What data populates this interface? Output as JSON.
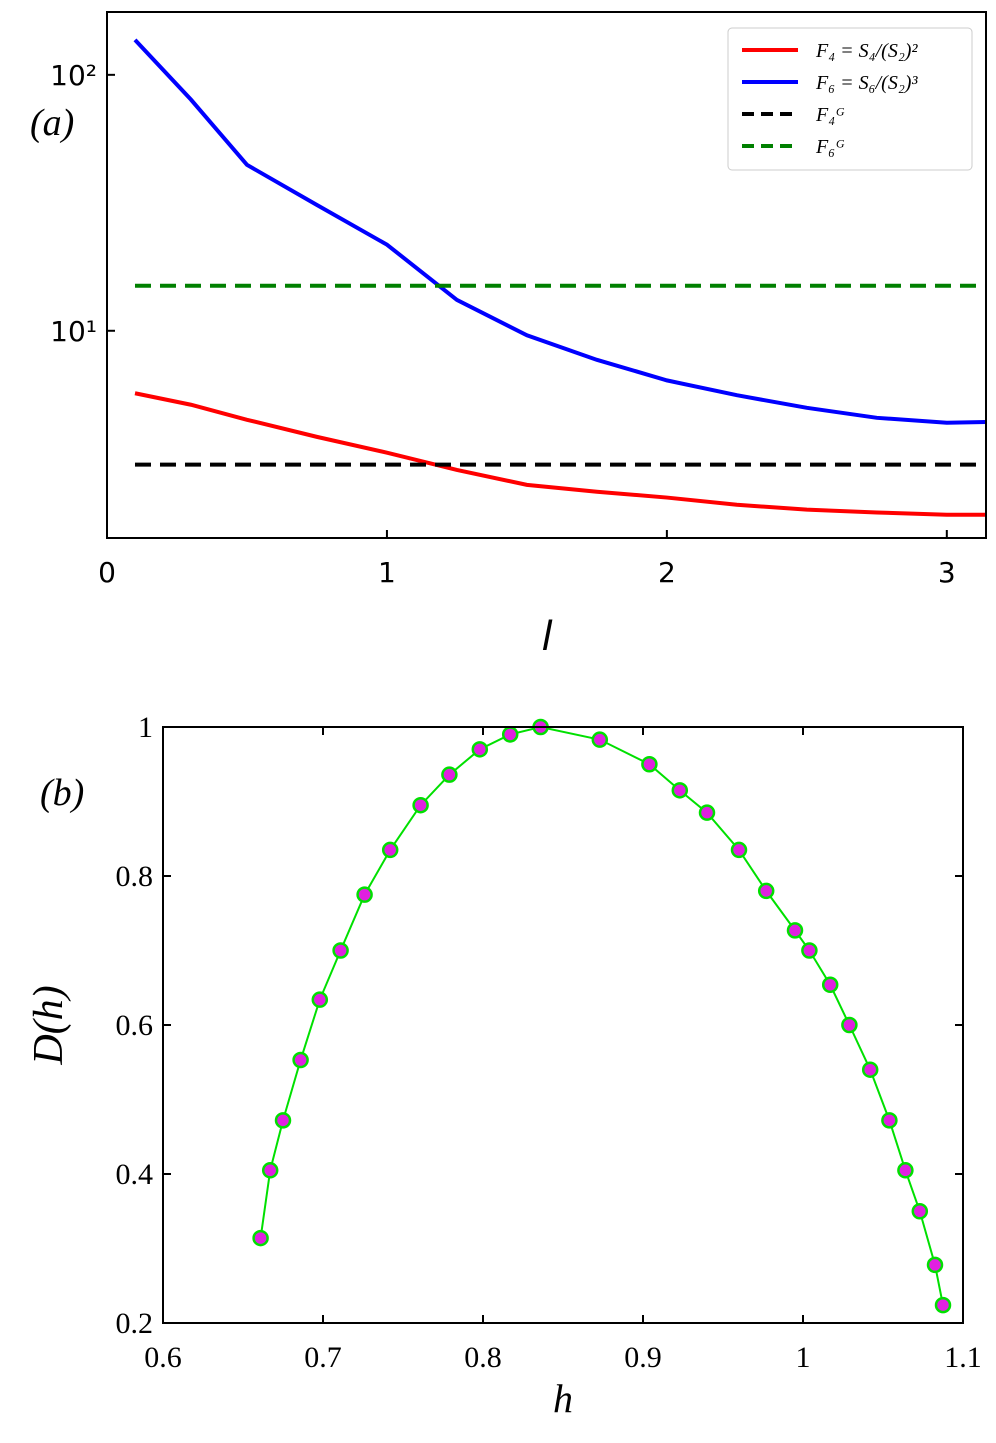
{
  "chart_data": [
    {
      "type": "line",
      "annotation": "(a)",
      "xlabel": "l",
      "ylog": true,
      "legend": "upper right",
      "xlim": [
        0,
        3.14
      ],
      "xticks": [
        0,
        1,
        2,
        3
      ],
      "ylim": [
        1.55,
        176
      ],
      "yticks": [
        {
          "value": 10,
          "label": "10¹"
        },
        {
          "value": 100,
          "label": "10²"
        }
      ],
      "x": [
        0.1,
        0.3,
        0.5,
        0.75,
        1,
        1.25,
        1.5,
        1.75,
        2,
        2.25,
        2.5,
        2.75,
        3,
        3.14
      ],
      "series": [
        {
          "name": "F₄ = S₄/(S₂)²",
          "color": "#ff0000",
          "dashed": false,
          "values": [
            5.7,
            5.14,
            4.49,
            3.85,
            3.34,
            2.86,
            2.5,
            2.35,
            2.23,
            2.09,
            2.0,
            1.95,
            1.91,
            1.91
          ]
        },
        {
          "name": "F₆ = S₆/(S₂)³",
          "color": "#0000ff",
          "dashed": false,
          "values": [
            137,
            80,
            44.5,
            31,
            21.7,
            13.2,
            9.6,
            7.7,
            6.4,
            5.6,
            5.0,
            4.57,
            4.37,
            4.4
          ]
        },
        {
          "name": "F₄ᴳ",
          "color": "#000000",
          "dashed": true,
          "values": [
            3,
            3,
            3,
            3,
            3,
            3,
            3,
            3,
            3,
            3,
            3,
            3,
            3,
            3
          ]
        },
        {
          "name": "F₆ᴳ",
          "color": "#008000",
          "dashed": true,
          "values": [
            15,
            15,
            15,
            15,
            15,
            15,
            15,
            15,
            15,
            15,
            15,
            15,
            15,
            15
          ]
        }
      ]
    },
    {
      "type": "line",
      "annotation": "(b)",
      "xlabel": "h",
      "ylabel": "D(h)",
      "markers": true,
      "xlim": [
        0.6,
        1.1
      ],
      "xticks": [
        0.6,
        0.7,
        0.8,
        0.9,
        1,
        1.1
      ],
      "ylim": [
        0.2,
        1
      ],
      "yticks": [
        0.2,
        0.4,
        0.6,
        0.8,
        1
      ],
      "x": [
        0.661,
        0.667,
        0.675,
        0.686,
        0.698,
        0.711,
        0.726,
        0.742,
        0.761,
        0.779,
        0.798,
        0.817,
        0.836,
        0.873,
        0.904,
        0.923,
        0.94,
        0.96,
        0.977,
        0.995,
        1.004,
        1.017,
        1.029,
        1.042,
        1.054,
        1.064,
        1.073,
        1.0825,
        1.0875
      ],
      "series": [
        {
          "color": "#00e000",
          "marker_color": "#e020e0",
          "values": [
            0.314,
            0.405,
            0.472,
            0.553,
            0.634,
            0.7,
            0.775,
            0.835,
            0.895,
            0.936,
            0.97,
            0.99,
            1.0,
            0.983,
            0.95,
            0.915,
            0.885,
            0.835,
            0.78,
            0.727,
            0.7,
            0.654,
            0.6,
            0.54,
            0.472,
            0.405,
            0.35,
            0.278,
            0.224
          ]
        }
      ]
    }
  ]
}
